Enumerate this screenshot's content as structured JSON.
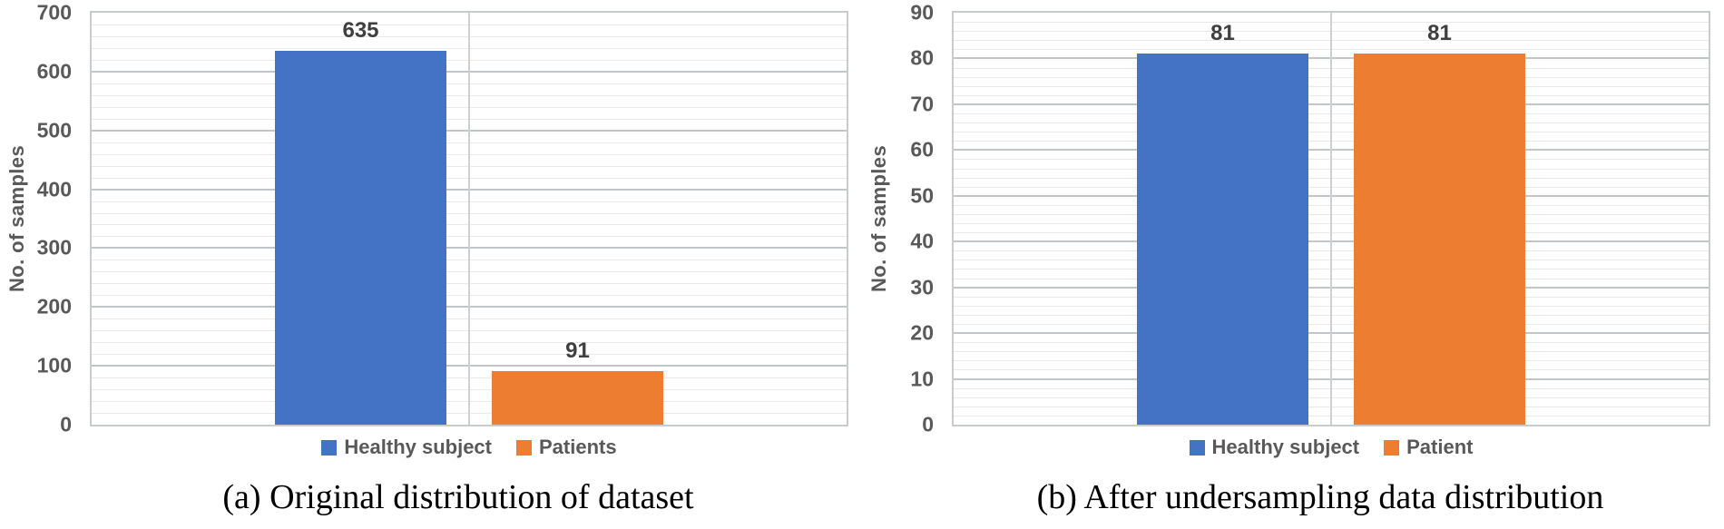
{
  "colors": {
    "series_blue": "#4472C4",
    "series_orange": "#ED7D31",
    "axis_text": "#595959",
    "data_label_text": "#3f3f3f",
    "gridline_major": "#c3c6c9",
    "gridline_minor": "#e7e9eb",
    "plot_border": "#c9ccce",
    "caption_text": "#000000",
    "background": "#ffffff"
  },
  "chart_data": [
    {
      "type": "bar",
      "caption": "(a) Original distribution of dataset",
      "ylabel": "No. of samples",
      "xlabel": "",
      "ylim": [
        0,
        700
      ],
      "major_unit": 100,
      "minor_unit": 20,
      "yticks": [
        "0",
        "100",
        "200",
        "300",
        "400",
        "500",
        "600",
        "700"
      ],
      "categories": [
        "Healthy subject",
        "Patients"
      ],
      "values": [
        635,
        91
      ],
      "series": [
        {
          "name": "Healthy subject",
          "value": 635,
          "label": "635",
          "color": "#4472C4"
        },
        {
          "name": "Patients",
          "value": 91,
          "label": "91",
          "color": "#ED7D31"
        }
      ],
      "legend": [
        {
          "label": "Healthy subject",
          "color": "#4472C4"
        },
        {
          "label": "Patients",
          "color": "#ED7D31"
        }
      ],
      "legend_position": "bottom",
      "grid": {
        "horizontal_major": true,
        "horizontal_minor": true,
        "vertical_center": true
      }
    },
    {
      "type": "bar",
      "caption": "(b) After undersampling data distribution",
      "ylabel": "No. of samples",
      "xlabel": "",
      "ylim": [
        0,
        90
      ],
      "major_unit": 10,
      "minor_unit": 2,
      "yticks": [
        "0",
        "10",
        "20",
        "30",
        "40",
        "50",
        "60",
        "70",
        "80",
        "90"
      ],
      "categories": [
        "Healthy subject",
        "Patient"
      ],
      "values": [
        81,
        81
      ],
      "series": [
        {
          "name": "Healthy subject",
          "value": 81,
          "label": "81",
          "color": "#4472C4"
        },
        {
          "name": "Patient",
          "value": 81,
          "label": "81",
          "color": "#ED7D31"
        }
      ],
      "legend": [
        {
          "label": "Healthy subject",
          "color": "#4472C4"
        },
        {
          "label": "Patient",
          "color": "#ED7D31"
        }
      ],
      "legend_position": "bottom",
      "grid": {
        "horizontal_major": true,
        "horizontal_minor": true,
        "vertical_center": true
      }
    }
  ]
}
